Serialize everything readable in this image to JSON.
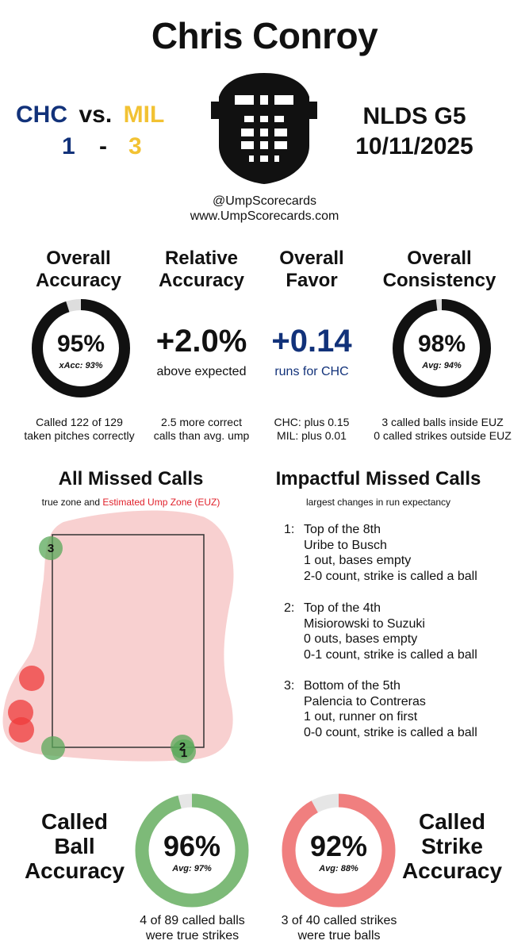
{
  "title": "Chris Conroy",
  "matchup": {
    "away_team": "CHC",
    "vs": "vs.",
    "home_team": "MIL",
    "away_score": "1",
    "dash": "-",
    "home_score": "3",
    "away_color": "#12327a",
    "home_color": "#f2c233"
  },
  "game": {
    "series": "NLDS  G5",
    "date": "10/11/2025"
  },
  "credits": {
    "handle": "@UmpScorecards",
    "website": "www.UmpScorecards.com"
  },
  "stats": {
    "overall_accuracy": {
      "title_line1": "Overall",
      "title_line2": "Accuracy",
      "value": "95%",
      "sub": "xAcc: 93%",
      "fraction": 0.95,
      "desc_line1": "Called 122 of 129",
      "desc_line2": "taken pitches correctly"
    },
    "relative_accuracy": {
      "title_line1": "Relative",
      "title_line2": "Accuracy",
      "value": "+2.0%",
      "sub": "above expected",
      "desc_line1": "2.5 more correct",
      "desc_line2": "calls than avg. ump"
    },
    "overall_favor": {
      "title_line1": "Overall",
      "title_line2": "Favor",
      "value": "+0.14",
      "sub": "runs for CHC",
      "desc_line1": "CHC: plus 0.15",
      "desc_line2": "MIL: plus 0.01"
    },
    "overall_consistency": {
      "title_line1": "Overall",
      "title_line2": "Consistency",
      "value": "98%",
      "sub": "Avg: 94%",
      "fraction": 0.98,
      "desc_line1": "3 called balls inside EUZ",
      "desc_line2": "0 called strikes outside EUZ"
    }
  },
  "missed_calls": {
    "title": "All Missed Calls",
    "subtitle_prefix": "true zone and ",
    "subtitle_highlight": "Estimated Ump Zone (EUZ)",
    "highlight_color": "#e0202a",
    "colors": {
      "missed_strike": "#ef3b3b",
      "missed_ball": "#5aa85a",
      "euz": "#f6c4c4"
    },
    "labels": [
      "3",
      "2",
      "1"
    ]
  },
  "impactful": {
    "title": "Impactful Missed Calls",
    "subtitle": "largest changes in run expectancy",
    "items": [
      {
        "num": "1:",
        "line1": "Top of the 8th",
        "line2": "Uribe to Busch",
        "line3": "1 out, bases empty",
        "line4": "2-0 count, strike is called a ball"
      },
      {
        "num": "2:",
        "line1": "Top of the 4th",
        "line2": "Misiorowski to Suzuki",
        "line3": "0 outs, bases empty",
        "line4": "0-1 count, strike is called a ball"
      },
      {
        "num": "3:",
        "line1": "Bottom of the 5th",
        "line2": "Palencia to Contreras",
        "line3": "1 out, runner on first",
        "line4": "0-0 count, strike is called a ball"
      }
    ]
  },
  "called_ball": {
    "label_line1": "Called",
    "label_line2": "Ball",
    "label_line3": "Accuracy",
    "value": "96%",
    "avg": "Avg: 97%",
    "fraction": 0.96,
    "color": "#7dba78",
    "desc_line1": "4 of 89 called balls",
    "desc_line2": "were true strikes"
  },
  "called_strike": {
    "label_line1": "Called",
    "label_line2": "Strike",
    "label_line3": "Accuracy",
    "value": "92%",
    "avg": "Avg: 88%",
    "fraction": 0.92,
    "color": "#f07f7f",
    "desc_line1": "3 of 40 called strikes",
    "desc_line2": "were true balls"
  }
}
